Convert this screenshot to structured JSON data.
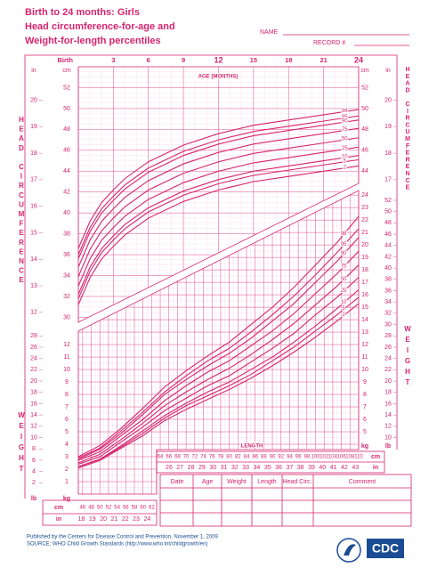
{
  "header": {
    "title": [
      "Birth to 24 months: Girls",
      "Head circumference-for-age and",
      "Weight-for-length percentiles"
    ],
    "name_label": "NAME",
    "record_label": "RECORD #"
  },
  "chart_data": [
    {
      "type": "line",
      "x_label": "AGE (MONTHS)",
      "y_label": "HEAD CIRCUMFERENCE",
      "x": [
        0,
        1,
        2,
        3,
        4,
        6,
        9,
        12,
        15,
        18,
        21,
        24
      ],
      "xlim": [
        0,
        24
      ],
      "xticks": [
        {
          "value": 0,
          "label": "Birth"
        },
        3,
        6,
        9,
        12,
        15,
        18,
        21,
        24
      ],
      "ylim": [
        29.7,
        54
      ],
      "yticks": [
        30,
        32,
        34,
        36,
        38,
        40,
        42,
        44,
        46,
        48,
        50,
        52
      ],
      "y_unit": "cm",
      "y2lim": [
        11.693,
        21.26
      ],
      "y2ticks": [
        12,
        13,
        14,
        15,
        16,
        17,
        18,
        19,
        20
      ],
      "y2_unit": "in",
      "grid": true,
      "series": [
        {
          "name": "98",
          "color": "#d6246e",
          "values": [
            36.6,
            39.2,
            41.0,
            42.2,
            43.3,
            44.9,
            46.5,
            47.6,
            48.4,
            48.9,
            49.4,
            49.9
          ]
        },
        {
          "name": "95",
          "color": "#d6246e",
          "values": [
            36.0,
            38.6,
            40.4,
            41.6,
            42.7,
            44.3,
            45.9,
            47.0,
            47.8,
            48.3,
            48.8,
            49.3
          ]
        },
        {
          "name": "90",
          "color": "#d6246e",
          "values": [
            35.6,
            38.2,
            40.0,
            41.2,
            42.3,
            43.9,
            45.5,
            46.6,
            47.4,
            47.9,
            48.4,
            48.9
          ]
        },
        {
          "name": "75",
          "color": "#d6246e",
          "values": [
            34.8,
            37.4,
            39.2,
            40.4,
            41.5,
            43.1,
            44.7,
            45.8,
            46.6,
            47.1,
            47.6,
            48.1
          ]
        },
        {
          "name": "50",
          "color": "#d6246e",
          "values": [
            33.9,
            36.5,
            38.3,
            39.5,
            40.6,
            42.2,
            43.8,
            44.9,
            45.7,
            46.2,
            46.7,
            47.2
          ]
        },
        {
          "name": "25",
          "color": "#d6246e",
          "values": [
            33.0,
            35.6,
            37.4,
            38.6,
            39.7,
            41.3,
            42.9,
            44.0,
            44.8,
            45.3,
            45.8,
            46.3
          ]
        },
        {
          "name": "10",
          "color": "#d6246e",
          "values": [
            32.2,
            34.8,
            36.6,
            37.8,
            38.9,
            40.5,
            42.1,
            43.2,
            44.0,
            44.5,
            45.0,
            45.5
          ]
        },
        {
          "name": "5",
          "color": "#d6246e",
          "values": [
            31.8,
            34.4,
            36.2,
            37.4,
            38.5,
            40.1,
            41.7,
            42.8,
            43.6,
            44.1,
            44.6,
            45.1
          ]
        },
        {
          "name": "2",
          "color": "#d6246e",
          "values": [
            31.2,
            33.8,
            35.6,
            36.8,
            37.9,
            39.5,
            41.1,
            42.2,
            43.0,
            43.5,
            44.0,
            44.5
          ]
        }
      ]
    },
    {
      "type": "line",
      "x_label": "LENGTH",
      "y_label": "WEIGHT",
      "x": [
        45,
        50,
        55,
        60,
        65,
        70,
        75,
        80,
        85,
        90,
        95,
        100,
        105,
        110
      ],
      "xlim": [
        45,
        110
      ],
      "xticks": [
        46,
        48,
        50,
        52,
        54,
        56,
        58,
        60,
        62,
        64,
        66,
        68,
        70,
        72,
        74,
        76,
        78,
        80,
        82,
        84,
        86,
        88,
        90,
        92,
        94,
        96,
        98,
        100,
        102,
        104,
        106,
        108,
        110
      ],
      "x_unit": "cm",
      "x2lim": [
        17.717,
        43.307
      ],
      "x2ticks": [
        18,
        19,
        20,
        21,
        22,
        23,
        24,
        26,
        27,
        28,
        29,
        30,
        31,
        32,
        33,
        34,
        35,
        36,
        37,
        38,
        39,
        40,
        41,
        42,
        43
      ],
      "x2_unit": "in",
      "ylim": [
        0,
        24.3
      ],
      "yticks": [
        1,
        2,
        3,
        4,
        5,
        6,
        7,
        8,
        9,
        10,
        11,
        12,
        13,
        14,
        15,
        16,
        17,
        18,
        19,
        20,
        21,
        22,
        23,
        24
      ],
      "y_unit": "kg",
      "y2lim": [
        0,
        53.57
      ],
      "y2ticks": [
        2,
        4,
        6,
        8,
        10,
        12,
        14,
        16,
        18,
        20,
        22,
        24,
        26,
        28,
        30,
        32,
        34,
        36,
        38,
        40,
        42,
        44,
        46,
        48,
        50,
        52
      ],
      "y2_unit": "lb",
      "grid": true,
      "series": [
        {
          "name": "98",
          "color": "#d6246e",
          "values": [
            3.0,
            3.9,
            5.3,
            6.9,
            8.6,
            9.9,
            11.1,
            12.2,
            13.6,
            15.0,
            16.6,
            18.4,
            20.2,
            22.3
          ]
        },
        {
          "name": "95",
          "color": "#d6246e",
          "values": [
            2.9,
            3.7,
            5.1,
            6.6,
            8.2,
            9.5,
            10.7,
            11.7,
            13.0,
            14.4,
            15.9,
            17.6,
            19.4,
            21.3
          ]
        },
        {
          "name": "90",
          "color": "#d6246e",
          "values": [
            2.8,
            3.6,
            4.9,
            6.4,
            8.0,
            9.2,
            10.3,
            11.3,
            12.5,
            13.9,
            15.3,
            17.0,
            18.7,
            20.6
          ]
        },
        {
          "name": "75",
          "color": "#d6246e",
          "values": [
            2.7,
            3.4,
            4.7,
            6.0,
            7.5,
            8.7,
            9.8,
            10.7,
            11.9,
            13.1,
            14.5,
            16.1,
            17.7,
            19.5
          ]
        },
        {
          "name": "50",
          "color": "#d6246e",
          "values": [
            2.5,
            3.2,
            4.4,
            5.7,
            7.1,
            8.2,
            9.2,
            10.1,
            11.2,
            12.4,
            13.7,
            15.2,
            16.7,
            18.4
          ]
        },
        {
          "name": "25",
          "color": "#d6246e",
          "values": [
            2.4,
            3.0,
            4.2,
            5.4,
            6.7,
            7.7,
            8.7,
            9.5,
            10.6,
            11.7,
            12.9,
            14.4,
            15.8,
            17.4
          ]
        },
        {
          "name": "10",
          "color": "#d6246e",
          "values": [
            2.2,
            2.8,
            3.9,
            5.1,
            6.3,
            7.3,
            8.2,
            9.0,
            10.0,
            11.0,
            12.2,
            13.5,
            14.9,
            16.4
          ]
        },
        {
          "name": "5",
          "color": "#d6246e",
          "values": [
            2.2,
            2.8,
            3.8,
            4.9,
            6.1,
            7.1,
            7.9,
            8.7,
            9.6,
            10.7,
            11.8,
            13.1,
            14.4,
            15.8
          ]
        },
        {
          "name": "2",
          "color": "#d6246e",
          "values": [
            2.1,
            2.7,
            3.7,
            4.7,
            5.9,
            6.8,
            7.6,
            8.4,
            9.3,
            10.3,
            11.4,
            12.6,
            13.9,
            15.3
          ]
        }
      ]
    }
  ],
  "record_table": {
    "columns": [
      "Date",
      "Age",
      "Weight",
      "Length",
      "Head Circ.",
      "Comment"
    ]
  },
  "footer": {
    "published": "Published by the Centers for Disease Control and Prevention, November 1, 2009",
    "source": "SOURCE:  WHO Child Growth Standards (http://www.who.int/childgrowth/en)"
  },
  "logo": {
    "text": "CDC"
  }
}
